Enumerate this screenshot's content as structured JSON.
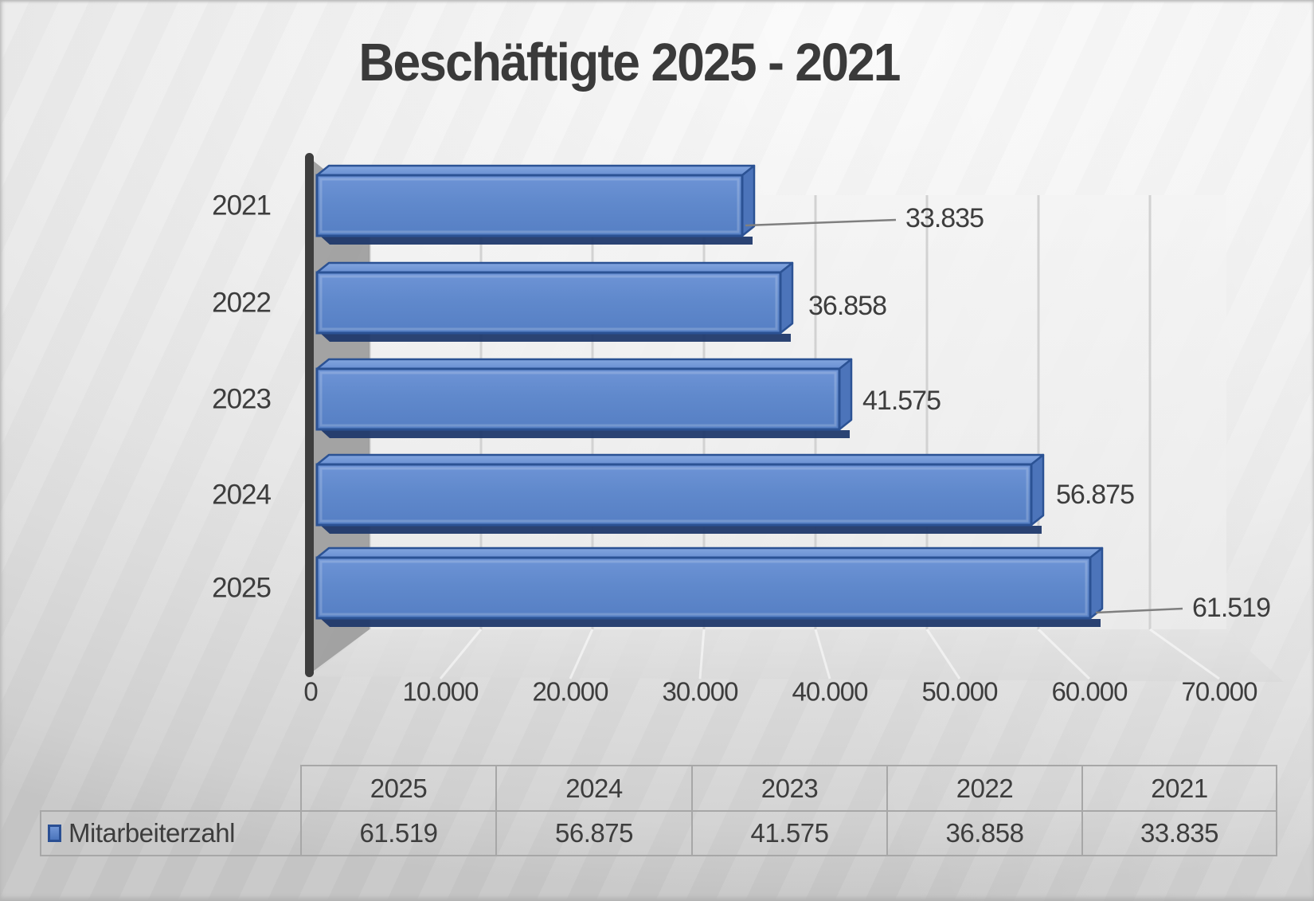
{
  "title": "Beschäftigte 2025 - 2021",
  "chart_data": {
    "type": "bar",
    "orientation": "horizontal",
    "style": "3d",
    "title": "Beschäftigte 2025 - 2021",
    "categories": [
      "2021",
      "2022",
      "2023",
      "2024",
      "2025"
    ],
    "values": [
      33835,
      36858,
      41575,
      56875,
      61519
    ],
    "value_labels": [
      "33.835",
      "36.858",
      "41.575",
      "56.875",
      "61.519"
    ],
    "series_name": "Mitarbeiterzahl",
    "xlim": [
      0,
      70000
    ],
    "x_ticks": [
      0,
      10000,
      20000,
      30000,
      40000,
      50000,
      60000,
      70000
    ],
    "x_tick_labels": [
      "0",
      "10.000",
      "20.000",
      "30.000",
      "40.000",
      "50.000",
      "60.000",
      "70.000"
    ],
    "grid": true,
    "legend_position": "table-bottom",
    "colors": {
      "bar_front": "#6089cc",
      "bar_top": "#769bd9",
      "bar_side": "#4c74ba",
      "bar_border": "#2b5294",
      "bar_bottom_edge": "#20396b",
      "axis_line": "#3e3e3e",
      "side_wall": "#9f9f9f",
      "gridline": "#d2d2d2",
      "leader_line": "#7f7f7f",
      "text": "#3d3d3d"
    }
  },
  "data_table": {
    "legend": {
      "icon": "series-color-swatch",
      "label": "Mitarbeiterzahl"
    },
    "columns": [
      "2025",
      "2024",
      "2023",
      "2022",
      "2021"
    ],
    "rows": [
      {
        "label": "Mitarbeiterzahl",
        "values": [
          "61.519",
          "56.875",
          "41.575",
          "36.858",
          "33.835"
        ]
      }
    ]
  }
}
